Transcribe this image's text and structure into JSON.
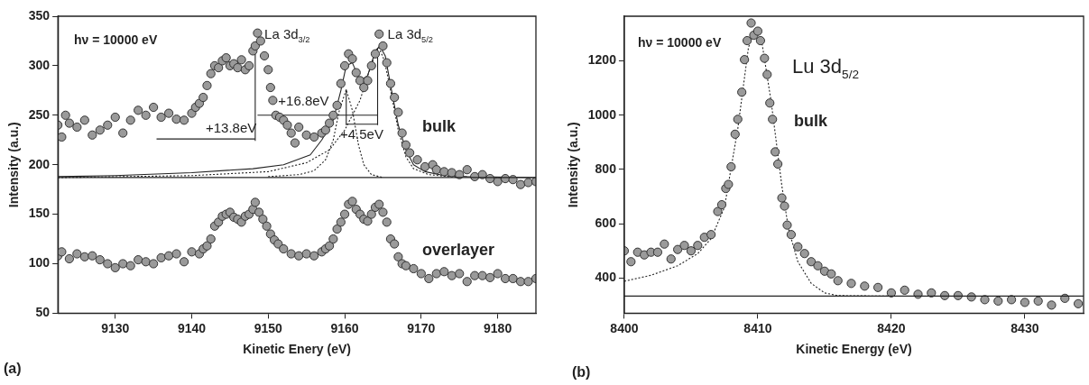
{
  "chart_data": [
    {
      "type": "scatter",
      "xlabel": "Kinetic Enery (eV)",
      "ylabel": "Intensity (a.u.)",
      "xlim": [
        9122.5,
        9185
      ],
      "ylim": [
        50,
        350
      ],
      "xticks": [
        9130,
        9140,
        9150,
        9160,
        9170,
        9180
      ],
      "yticks": [
        50,
        100,
        150,
        200,
        250,
        300,
        350
      ],
      "grid": false,
      "legend": false,
      "series": [
        {
          "name": "bulk",
          "marker": "circle",
          "color": "#9a9a9a",
          "x": [
            9122.5,
            9123,
            9123.5,
            9124,
            9125,
            9126,
            9127,
            9128,
            9129,
            9130,
            9131,
            9132,
            9133,
            9134,
            9135,
            9136,
            9137,
            9138,
            9139,
            9140,
            9140.5,
            9141,
            9141.5,
            9142,
            9142.5,
            9143,
            9143.5,
            9144,
            9144.5,
            9145,
            9145.5,
            9146,
            9146.5,
            9147,
            9147.5,
            9148,
            9148.3,
            9148.6,
            9149,
            9149.5,
            9150,
            9150.3,
            9150.6,
            9151,
            9151.5,
            9152,
            9152.5,
            9153,
            9153.5,
            9154,
            9155,
            9156,
            9157,
            9157.5,
            9158,
            9158.5,
            9159,
            9159.5,
            9160,
            9160.5,
            9161,
            9161.5,
            9162,
            9162.5,
            9163,
            9163.5,
            9164,
            9164.5,
            9165,
            9165.5,
            9166,
            9166.5,
            9167,
            9167.5,
            9168,
            9168.5,
            9169.5,
            9170.5,
            9171.5,
            9172,
            9173,
            9174,
            9175,
            9176,
            9177,
            9178,
            9179,
            9180,
            9181,
            9182,
            9183,
            9184,
            9185
          ],
          "values": [
            240,
            228,
            250,
            242,
            238,
            245,
            230,
            235,
            240,
            248,
            232,
            245,
            255,
            250,
            258,
            248,
            252,
            246,
            245,
            252,
            258,
            262,
            268,
            280,
            292,
            300,
            298,
            305,
            308,
            300,
            302,
            298,
            306,
            296,
            300,
            315,
            320,
            333,
            325,
            310,
            296,
            278,
            265,
            250,
            248,
            245,
            240,
            232,
            222,
            238,
            230,
            228,
            232,
            235,
            242,
            250,
            260,
            282,
            300,
            312,
            307,
            293,
            285,
            278,
            285,
            300,
            312,
            332,
            320,
            303,
            282,
            268,
            253,
            232,
            220,
            212,
            205,
            198,
            200,
            195,
            193,
            192,
            190,
            195,
            188,
            190,
            186,
            183,
            186,
            185,
            180,
            182,
            183
          ]
        },
        {
          "name": "overlayer",
          "marker": "circle",
          "color": "#9a9a9a",
          "x": [
            9122.5,
            9123,
            9124,
            9125,
            9126,
            9127,
            9128,
            9129,
            9130,
            9131,
            9132,
            9133,
            9134,
            9135,
            9136,
            9137,
            9138,
            9139,
            9140,
            9141,
            9141.5,
            9142,
            9142.5,
            9143,
            9143.5,
            9144,
            9144.5,
            9145,
            9145.5,
            9146,
            9146.5,
            9147,
            9147.5,
            9148,
            9148.3,
            9148.8,
            9149.3,
            9149.8,
            9150.3,
            9150.8,
            9151.3,
            9152,
            9153,
            9154,
            9155,
            9156,
            9157,
            9157.5,
            9158,
            9158.5,
            9159,
            9159.5,
            9160,
            9160.5,
            9161,
            9161.5,
            9162,
            9162.5,
            9163,
            9163.5,
            9164,
            9164.5,
            9165,
            9165.5,
            9166,
            9166.5,
            9167,
            9167.5,
            9168,
            9169,
            9170,
            9171,
            9172,
            9173,
            9174,
            9175,
            9176,
            9177,
            9178,
            9179,
            9180,
            9181,
            9182,
            9183,
            9184,
            9185
          ],
          "values": [
            108,
            112,
            105,
            110,
            107,
            108,
            104,
            100,
            96,
            100,
            98,
            104,
            102,
            100,
            106,
            108,
            110,
            102,
            112,
            110,
            115,
            118,
            125,
            138,
            142,
            148,
            150,
            152,
            147,
            145,
            142,
            148,
            150,
            155,
            162,
            152,
            145,
            138,
            130,
            124,
            120,
            115,
            110,
            108,
            110,
            108,
            112,
            115,
            118,
            125,
            135,
            142,
            150,
            160,
            163,
            155,
            150,
            145,
            143,
            150,
            157,
            160,
            152,
            142,
            125,
            120,
            107,
            100,
            98,
            95,
            90,
            85,
            90,
            92,
            88,
            90,
            82,
            88,
            88,
            86,
            90,
            85,
            85,
            82,
            82,
            85
          ]
        },
        {
          "type": "line",
          "line_style": "solid",
          "color": "#222222",
          "x": [
            9122.5,
            9130,
            9140,
            9148,
            9152,
            9155.5,
            9157,
            9158.5,
            9159.5,
            9160.2,
            9161,
            9162,
            9163,
            9164,
            9164.6,
            9165.3,
            9166,
            9167,
            9168,
            9169,
            9170.5,
            9173,
            9176,
            9185
          ],
          "values": [
            188,
            189,
            192,
            196,
            200,
            210,
            225,
            245,
            275,
            300,
            303,
            285,
            290,
            315,
            320,
            310,
            280,
            240,
            215,
            200,
            193,
            189,
            188,
            187
          ]
        },
        {
          "type": "line",
          "line_style": "dotted",
          "color": "#222222",
          "x": [
            9150,
            9154,
            9156,
            9157.5,
            9158.5,
            9159.3,
            9160.2,
            9161,
            9161.8,
            9162.5,
            9163.5,
            9165
          ],
          "values": [
            188,
            190,
            194,
            205,
            225,
            255,
            276,
            255,
            220,
            200,
            190,
            187
          ]
        },
        {
          "type": "line",
          "line_style": "dotted",
          "color": "#222222",
          "x": [
            9122.5,
            9140,
            9150,
            9155,
            9158,
            9160,
            9162,
            9163,
            9164,
            9164.5,
            9165.2,
            9166,
            9167,
            9168,
            9169,
            9171,
            9175
          ],
          "values": [
            187,
            189,
            193,
            202,
            215,
            235,
            265,
            290,
            312,
            318,
            305,
            275,
            235,
            208,
            196,
            190,
            187
          ]
        },
        {
          "type": "line",
          "line_style": "solid",
          "color": "#222222",
          "x": [
            9148.3,
            9148.3
          ],
          "values": [
            224,
            319
          ]
        },
        {
          "type": "line",
          "line_style": "solid",
          "color": "#222222",
          "x": [
            9164.3,
            9164.3
          ],
          "values": [
            240,
            318
          ]
        },
        {
          "type": "line",
          "line_style": "solid",
          "color": "#222222",
          "x": [
            9160.2,
            9160.2
          ],
          "values": [
            240,
            276
          ]
        },
        {
          "type": "line",
          "line_style": "solid",
          "color": "#222222",
          "x": [
            9135.4,
            9148.3
          ],
          "values": [
            226,
            226
          ]
        },
        {
          "type": "line",
          "line_style": "solid",
          "color": "#222222",
          "x": [
            9148.6,
            9164.3
          ],
          "values": [
            250,
            250
          ]
        },
        {
          "type": "line",
          "line_style": "solid",
          "color": "#222222",
          "x": [
            9160.2,
            9164.3
          ],
          "values": [
            241,
            241
          ]
        }
      ],
      "ref_lines": [
        {
          "axis": "y",
          "value": 187,
          "color": "#222222"
        }
      ],
      "annotations": [
        "hν = 10000 eV",
        {
          "text": "La 3d$_{3/2}$",
          "x": 9149.5,
          "y": 331
        },
        {
          "text": "La 3d$_{5/2}$",
          "x": 9165.6,
          "y": 331
        },
        "+13.8eV",
        {
          "text": "+16.8eV",
          "x": 9151.3,
          "y": 264
        },
        {
          "text": "+4.5eV",
          "x": 9159.4,
          "y": 230
        },
        "(a)"
      ]
    },
    {
      "type": "scatter",
      "xlabel": "Kinetic Energy (eV)",
      "ylabel": "Intensity (a.u.)",
      "xlim": [
        8400,
        8434.4
      ],
      "ylim": [
        270,
        1365
      ],
      "xticks": [
        8400,
        8410,
        8420,
        8430
      ],
      "yticks": [
        400,
        600,
        800,
        1000,
        1200
      ],
      "grid": false,
      "legend": false,
      "series": [
        {
          "name": "bulk",
          "marker": "circle",
          "color": "#9a9a9a",
          "x": [
            8400,
            8400.5,
            8401,
            8401.5,
            8402,
            8402.5,
            8403,
            8403.5,
            8404,
            8404.5,
            8405,
            8405.5,
            8406,
            8406.5,
            8407,
            8407.3,
            8407.6,
            8407.8,
            8408,
            8408.3,
            8408.5,
            8408.8,
            8409,
            8409.2,
            8409.5,
            8409.7,
            8410,
            8410.2,
            8410.5,
            8410.7,
            8410.9,
            8411.1,
            8411.3,
            8411.5,
            8411.8,
            8412,
            8412.2,
            8412.5,
            8413,
            8413.5,
            8414,
            8414.5,
            8415,
            8415.5,
            8416,
            8417,
            8418,
            8419,
            8420,
            8421,
            8422,
            8423,
            8424,
            8425,
            8426,
            8427,
            8428,
            8429,
            8430,
            8431,
            8432,
            8433,
            8434
          ],
          "values": [
            500,
            460,
            495,
            485,
            495,
            495,
            525,
            470,
            505,
            520,
            500,
            520,
            550,
            560,
            645,
            670,
            730,
            745,
            810,
            930,
            985,
            1085,
            1205,
            1275,
            1340,
            1295,
            1310,
            1275,
            1210,
            1150,
            1045,
            985,
            865,
            820,
            695,
            665,
            595,
            560,
            515,
            490,
            460,
            445,
            425,
            415,
            390,
            380,
            370,
            365,
            345,
            355,
            340,
            345,
            335,
            335,
            330,
            320,
            315,
            320,
            310,
            315,
            300,
            325,
            305
          ]
        },
        {
          "type": "line",
          "line_style": "dotted",
          "color": "#222222",
          "x": [
            8400,
            8402,
            8404,
            8405.5,
            8406.5,
            8407.5,
            8408.5,
            8409.3,
            8409.8,
            8410.3,
            8411,
            8411.8,
            8412.3,
            8413,
            8414,
            8415,
            8416,
            8420
          ],
          "values": [
            388,
            410,
            445,
            490,
            545,
            660,
            950,
            1250,
            1320,
            1270,
            1050,
            740,
            580,
            460,
            380,
            345,
            335,
            333
          ]
        }
      ],
      "ref_lines": [
        {
          "axis": "y",
          "value": 333,
          "color": "#222222"
        }
      ],
      "annotations": [
        "hν = 10000 eV",
        "Lu 3d$_{5/2}$",
        "(b)"
      ]
    }
  ]
}
